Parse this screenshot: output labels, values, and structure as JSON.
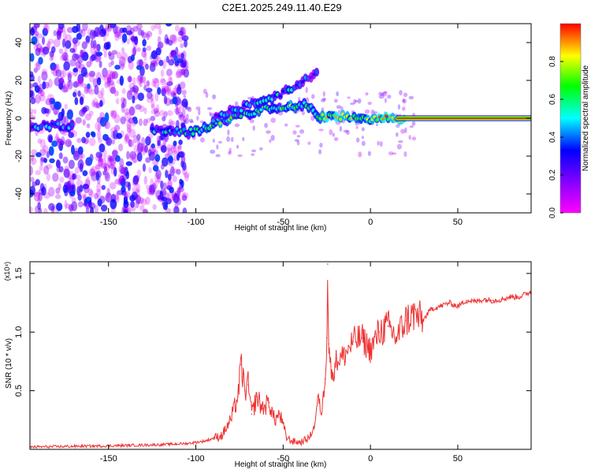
{
  "chart_data": [
    {
      "type": "heatmap",
      "title": "C2E1.2025.249.11.40.E29",
      "xlabel": "Height of straight line (km)",
      "ylabel": "Frequency (Hz)",
      "xlim": [
        -195,
        92
      ],
      "ylim": [
        -50,
        50
      ],
      "xticks": [
        -150,
        -100,
        -50,
        0,
        50
      ],
      "yticks": [
        -40,
        -20,
        0,
        20,
        40
      ],
      "colorbar": {
        "label": "Normalized spectral amplitude",
        "range": [
          0.0,
          1.0
        ],
        "ticks": [
          0.0,
          0.2,
          0.4,
          0.6,
          0.8
        ],
        "colors": [
          "#ff00ff",
          "#8000ff",
          "#0000ff",
          "#00ffff",
          "#00ff00",
          "#ffff00",
          "#ff0000"
        ]
      },
      "ridge": {
        "points": [
          {
            "x": -195,
            "y": -4,
            "a": 0.35
          },
          {
            "x": -170,
            "y": -4,
            "a": 0.45
          },
          {
            "x": -125,
            "y": -7,
            "a": 0.4
          },
          {
            "x": -100,
            "y": -7,
            "a": 0.55
          },
          {
            "x": -85,
            "y": -1,
            "a": 0.6
          },
          {
            "x": -70,
            "y": 3,
            "a": 0.55
          },
          {
            "x": -55,
            "y": 6,
            "a": 0.6
          },
          {
            "x": -40,
            "y": 7,
            "a": 0.65
          },
          {
            "x": -33,
            "y": 6,
            "a": 0.6
          },
          {
            "x": -30,
            "y": 1,
            "a": 0.8
          },
          {
            "x": -20,
            "y": 1,
            "a": 0.75
          },
          {
            "x": -10,
            "y": 0,
            "a": 0.7
          },
          {
            "x": 0,
            "y": -1,
            "a": 0.75
          },
          {
            "x": 10,
            "y": 0,
            "a": 0.85
          },
          {
            "x": 20,
            "y": 0,
            "a": 0.95
          },
          {
            "x": 92,
            "y": 0,
            "a": 1.0
          }
        ],
        "upper_branch": [
          {
            "x": -90,
            "y": 0,
            "a": 0.35
          },
          {
            "x": -75,
            "y": 5,
            "a": 0.4
          },
          {
            "x": -60,
            "y": 10,
            "a": 0.45
          },
          {
            "x": -45,
            "y": 15,
            "a": 0.45
          },
          {
            "x": -30,
            "y": 25,
            "a": 0.3
          }
        ]
      }
    },
    {
      "type": "line",
      "title": "",
      "xlabel": "Height of straight line (km)",
      "ylabel": "SNR (10 * v/v)",
      "scale_label": "(x10⁴)",
      "xlim": [
        -195,
        92
      ],
      "ylim": [
        0,
        1.6
      ],
      "xticks": [
        -150,
        -100,
        -50,
        0,
        50
      ],
      "yticks": [
        0.5,
        1.0,
        1.5
      ],
      "series": [
        {
          "name": "SNR",
          "color": "#ee3333",
          "x": [
            -195,
            -150,
            -120,
            -105,
            -95,
            -85,
            -80,
            -76,
            -74,
            -72,
            -70,
            -68,
            -65,
            -62,
            -58,
            -55,
            -52,
            -48,
            -45,
            -40,
            -35,
            -32,
            -30,
            -28,
            -26,
            -25,
            -24.5,
            -24,
            -22,
            -20,
            -15,
            -10,
            -5,
            0,
            5,
            10,
            15,
            20,
            25,
            30,
            35,
            40,
            45,
            50,
            55,
            60,
            65,
            70,
            75,
            80,
            85,
            90,
            92
          ],
          "values": [
            0.02,
            0.03,
            0.04,
            0.05,
            0.07,
            0.12,
            0.25,
            0.45,
            0.72,
            0.5,
            0.55,
            0.3,
            0.45,
            0.35,
            0.4,
            0.25,
            0.3,
            0.1,
            0.07,
            0.06,
            0.1,
            0.2,
            0.45,
            0.3,
            0.6,
            0.95,
            1.58,
            0.9,
            0.6,
            0.75,
            0.8,
            0.92,
            0.95,
            0.85,
            1.0,
            1.05,
            0.95,
            1.1,
            1.15,
            1.1,
            1.2,
            1.22,
            1.25,
            1.22,
            1.27,
            1.26,
            1.28,
            1.27,
            1.28,
            1.3,
            1.3,
            1.33,
            1.35
          ]
        }
      ]
    }
  ]
}
